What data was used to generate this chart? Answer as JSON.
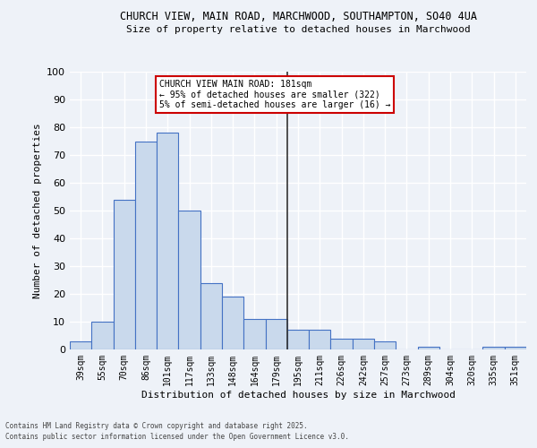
{
  "title1": "CHURCH VIEW, MAIN ROAD, MARCHWOOD, SOUTHAMPTON, SO40 4UA",
  "title2": "Size of property relative to detached houses in Marchwood",
  "xlabel": "Distribution of detached houses by size in Marchwood",
  "ylabel": "Number of detached properties",
  "categories": [
    "39sqm",
    "55sqm",
    "70sqm",
    "86sqm",
    "101sqm",
    "117sqm",
    "133sqm",
    "148sqm",
    "164sqm",
    "179sqm",
    "195sqm",
    "211sqm",
    "226sqm",
    "242sqm",
    "257sqm",
    "273sqm",
    "289sqm",
    "304sqm",
    "320sqm",
    "335sqm",
    "351sqm"
  ],
  "values": [
    3,
    10,
    54,
    75,
    78,
    50,
    24,
    19,
    11,
    11,
    7,
    7,
    4,
    4,
    3,
    0,
    1,
    0,
    0,
    1,
    1
  ],
  "bar_color": "#c9d9ec",
  "bar_edge_color": "#4472c4",
  "vline_color": "#333333",
  "annotation_title": "CHURCH VIEW MAIN ROAD: 181sqm",
  "annotation_line1": "← 95% of detached houses are smaller (322)",
  "annotation_line2": "5% of semi-detached houses are larger (16) →",
  "annotation_box_color": "#ffffff",
  "annotation_box_edge": "#cc0000",
  "ylim": [
    0,
    100
  ],
  "yticks": [
    0,
    10,
    20,
    30,
    40,
    50,
    60,
    70,
    80,
    90,
    100
  ],
  "bg_color": "#eef2f8",
  "grid_color": "#ffffff",
  "footer1": "Contains HM Land Registry data © Crown copyright and database right 2025.",
  "footer2": "Contains public sector information licensed under the Open Government Licence v3.0."
}
